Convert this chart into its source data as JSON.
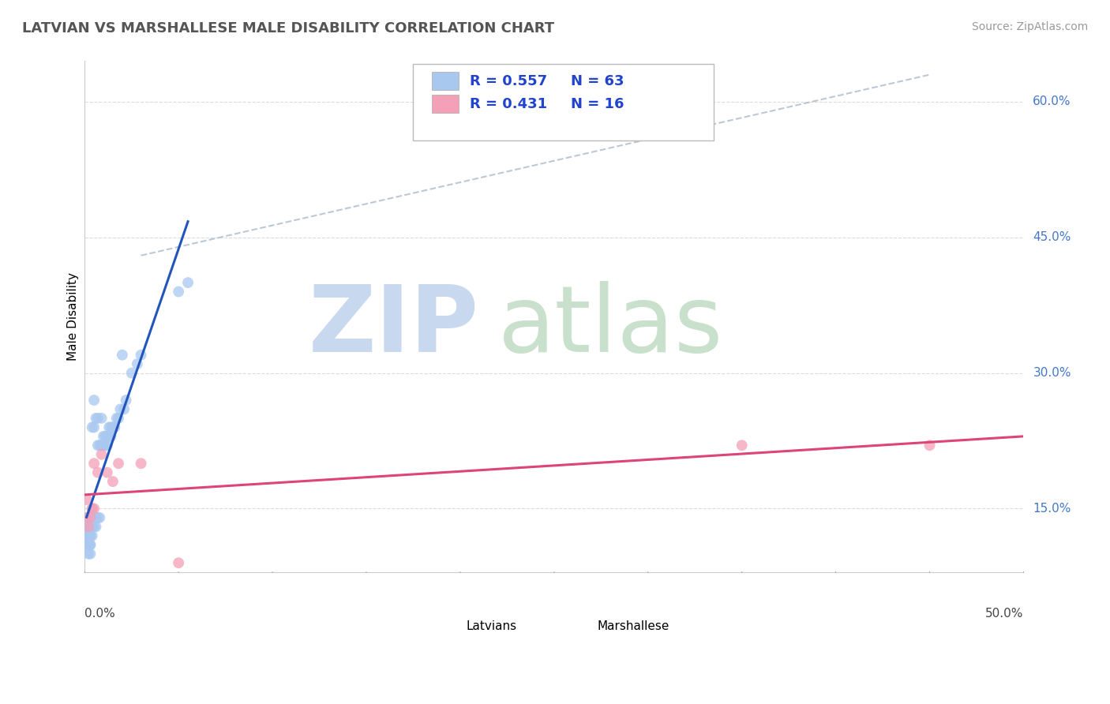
{
  "title": "LATVIAN VS MARSHALLESE MALE DISABILITY CORRELATION CHART",
  "source_text": "Source: ZipAtlas.com",
  "ylabel": "Male Disability",
  "right_yticks": [
    "15.0%",
    "30.0%",
    "45.0%",
    "60.0%"
  ],
  "right_ytick_vals": [
    0.15,
    0.3,
    0.45,
    0.6
  ],
  "xlim": [
    0.0,
    0.5
  ],
  "ylim": [
    0.08,
    0.645
  ],
  "latvian_color": "#a8c8f0",
  "marshallese_color": "#f4a0b8",
  "latvian_line_color": "#2255bb",
  "marshallese_line_color": "#dd4477",
  "r_latvian": 0.557,
  "n_latvian": 63,
  "r_marshallese": 0.431,
  "n_marshallese": 16,
  "legend_label_latvian": "Latvians",
  "legend_label_marshallese": "Marshallese",
  "latvian_x": [
    0.001,
    0.001,
    0.001,
    0.001,
    0.001,
    0.001,
    0.002,
    0.002,
    0.002,
    0.002,
    0.002,
    0.002,
    0.002,
    0.003,
    0.003,
    0.003,
    0.003,
    0.003,
    0.003,
    0.003,
    0.003,
    0.004,
    0.004,
    0.004,
    0.004,
    0.004,
    0.005,
    0.005,
    0.005,
    0.005,
    0.006,
    0.006,
    0.006,
    0.007,
    0.007,
    0.007,
    0.008,
    0.008,
    0.009,
    0.009,
    0.01,
    0.01,
    0.011,
    0.011,
    0.012,
    0.012,
    0.013,
    0.013,
    0.014,
    0.014,
    0.015,
    0.016,
    0.017,
    0.018,
    0.019,
    0.02,
    0.021,
    0.022,
    0.025,
    0.028,
    0.03,
    0.05,
    0.055
  ],
  "latvian_y": [
    0.11,
    0.12,
    0.12,
    0.13,
    0.13,
    0.14,
    0.1,
    0.11,
    0.12,
    0.12,
    0.13,
    0.13,
    0.14,
    0.1,
    0.11,
    0.11,
    0.12,
    0.12,
    0.13,
    0.14,
    0.14,
    0.12,
    0.13,
    0.14,
    0.15,
    0.24,
    0.13,
    0.14,
    0.24,
    0.27,
    0.13,
    0.14,
    0.25,
    0.14,
    0.22,
    0.25,
    0.14,
    0.22,
    0.22,
    0.25,
    0.22,
    0.23,
    0.22,
    0.23,
    0.22,
    0.23,
    0.23,
    0.24,
    0.23,
    0.24,
    0.24,
    0.24,
    0.25,
    0.25,
    0.26,
    0.32,
    0.26,
    0.27,
    0.3,
    0.31,
    0.32,
    0.39,
    0.4
  ],
  "marshallese_x": [
    0.001,
    0.001,
    0.002,
    0.003,
    0.004,
    0.005,
    0.005,
    0.007,
    0.009,
    0.012,
    0.015,
    0.018,
    0.03,
    0.05,
    0.35,
    0.45
  ],
  "marshallese_y": [
    0.14,
    0.16,
    0.13,
    0.14,
    0.15,
    0.15,
    0.2,
    0.19,
    0.21,
    0.19,
    0.18,
    0.2,
    0.2,
    0.09,
    0.22,
    0.22
  ],
  "background_color": "#ffffff",
  "grid_color": "#cccccc",
  "watermark_zip_color": "#c8d8ee",
  "watermark_atlas_color": "#d8e8d8"
}
